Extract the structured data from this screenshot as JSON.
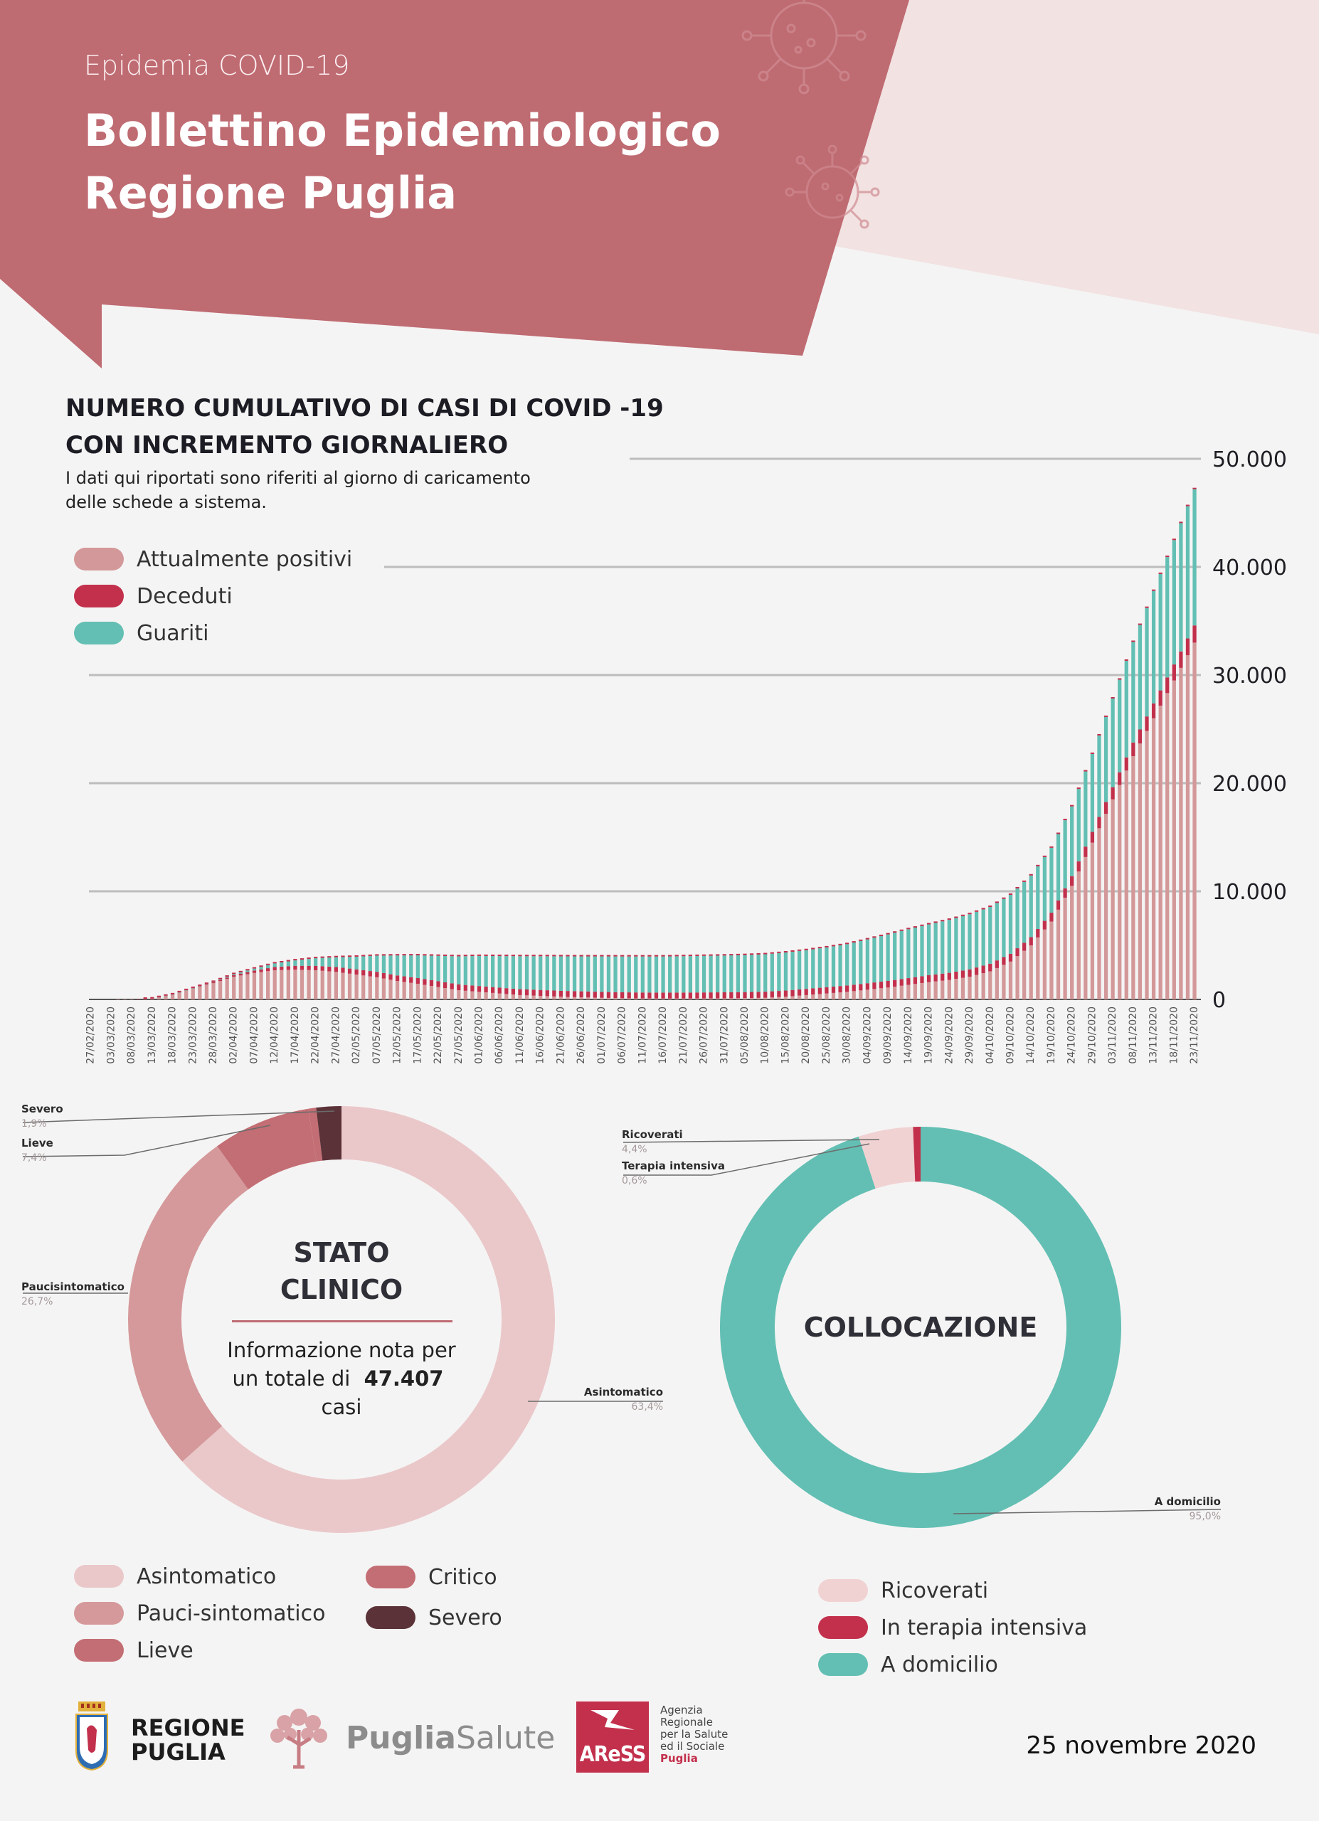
{
  "header": {
    "subtitle": "Epidemia COVID-19",
    "title_line1": "Bollettino Epidemiologico",
    "title_line2": "Regione Puglia"
  },
  "colors": {
    "header_red": "#bf6b72",
    "header_pink_light": "#f2e2e2",
    "attualmente_positivi": "#d39899",
    "deceduti": "#c2304c",
    "guariti": "#63bfb3",
    "asintomatico": "#eac8ca",
    "pauci": "#d5999b",
    "lieve": "#c36e74",
    "critico": "#c36e74",
    "severo": "#5a3238",
    "ricoverati": "#f1d2d3",
    "terapia_intensiva": "#c2304c",
    "domicilio": "#63bfb3"
  },
  "bar_chart_section": {
    "title_line1": "NUMERO CUMULATIVO DI CASI DI COVID -19",
    "title_line2": "CON INCREMENTO GIORNALIERO",
    "note_line1": "I dati qui riportati sono riferiti al giorno di caricamento",
    "note_line2": "delle schede a sistema.",
    "legend": [
      {
        "label": "Attualmente positivi",
        "color": "#d39899"
      },
      {
        "label": "Deceduti",
        "color": "#c2304c"
      },
      {
        "label": "Guariti",
        "color": "#63bfb3"
      }
    ]
  },
  "chart_data": [
    {
      "type": "bar",
      "stacked": true,
      "title": "NUMERO CUMULATIVO DI CASI DI COVID -19 CON INCREMENTO GIORNALIERO",
      "ylim": [
        0,
        50000
      ],
      "yticks": [
        "0",
        "10.000",
        "20.000",
        "30.000",
        "40.000",
        "50.000"
      ],
      "grid": true,
      "x_tick_labels": [
        "27/02/2020",
        "03/03/2020",
        "08/03/2020",
        "13/03/2020",
        "18/03/2020",
        "23/03/2020",
        "28/03/2020",
        "02/04/2020",
        "07/04/2020",
        "12/04/2020",
        "17/04/2020",
        "22/04/2020",
        "27/04/2020",
        "02/05/2020",
        "07/05/2020",
        "12/05/2020",
        "17/05/2020",
        "22/05/2020",
        "27/05/2020",
        "01/06/2020",
        "06/06/2020",
        "11/06/2020",
        "16/06/2020",
        "21/06/2020",
        "26/06/2020",
        "01/07/2020",
        "06/07/2020",
        "11/07/2020",
        "16/07/2020",
        "21/07/2020",
        "26/07/2020",
        "31/07/2020",
        "05/08/2020",
        "10/08/2020",
        "15/08/2020",
        "20/08/2020",
        "25/08/2020",
        "30/08/2020",
        "04/09/2020",
        "09/09/2020",
        "14/09/2020",
        "19/09/2020",
        "24/09/2020",
        "29/09/2020",
        "04/10/2020",
        "09/10/2020",
        "14/10/2020",
        "19/10/2020",
        "24/10/2020",
        "29/10/2020",
        "03/11/2020",
        "08/11/2020",
        "13/11/2020",
        "18/11/2020",
        "23/11/2020"
      ],
      "series_samples_note": "values per tick date (every 5 days)",
      "series": [
        {
          "name": "Attualmente positivi",
          "values": [
            0,
            0,
            10,
            80,
            450,
            1000,
            1500,
            2100,
            2450,
            2700,
            2750,
            2700,
            2550,
            2300,
            2050,
            1700,
            1450,
            1150,
            850,
            700,
            550,
            400,
            330,
            250,
            200,
            150,
            110,
            90,
            80,
            80,
            90,
            100,
            120,
            150,
            250,
            400,
            550,
            700,
            900,
            1100,
            1350,
            1600,
            1800,
            2100,
            2600,
            3500,
            5000,
            7200,
            10500,
            14500,
            18500,
            22500,
            26000,
            29500,
            33000
          ]
        },
        {
          "name": "Deceduti",
          "values": [
            0,
            0,
            0,
            5,
            15,
            40,
            80,
            150,
            220,
            300,
            360,
            410,
            450,
            480,
            500,
            515,
            525,
            530,
            535,
            540,
            540,
            545,
            545,
            545,
            548,
            548,
            550,
            550,
            552,
            555,
            556,
            558,
            560,
            565,
            570,
            575,
            580,
            590,
            600,
            610,
            620,
            640,
            660,
            680,
            700,
            720,
            760,
            820,
            900,
            1000,
            1130,
            1260,
            1380,
            1480,
            1590
          ]
        },
        {
          "name": "Guariti",
          "values": [
            0,
            0,
            0,
            0,
            5,
            15,
            40,
            90,
            180,
            330,
            500,
            700,
            900,
            1170,
            1500,
            1850,
            2100,
            2350,
            2600,
            2780,
            2920,
            3050,
            3120,
            3190,
            3230,
            3280,
            3310,
            3330,
            3340,
            3360,
            3380,
            3400,
            3420,
            3460,
            3520,
            3580,
            3680,
            3820,
            4050,
            4300,
            4520,
            4700,
            4900,
            5100,
            5250,
            5450,
            5700,
            6000,
            6450,
            7200,
            8200,
            9300,
            10400,
            11500,
            12600
          ]
        }
      ]
    },
    {
      "type": "pie",
      "donut": true,
      "title": "STATO CLINICO",
      "labels": [
        "Asintomatico",
        "Paucisintomatico",
        "Lieve",
        "Critico",
        "Severo"
      ],
      "values": [
        63.4,
        26.7,
        7.4,
        0.6,
        1.9
      ]
    },
    {
      "type": "pie",
      "donut": true,
      "title": "COLLOCAZIONE",
      "labels": [
        "Ricoverati",
        "Terapia intensiva",
        "A domicilio"
      ],
      "values": [
        4.4,
        0.6,
        95.0
      ]
    }
  ],
  "stato_clinico": {
    "center_title_line1": "STATO",
    "center_title_line2": "CLINICO",
    "info_line1": "Informazione nota per",
    "info_prefix": "un totale di",
    "info_total": "47.407",
    "info_suffix": "casi",
    "callouts": [
      {
        "label": "Severo",
        "pct": "1,9%"
      },
      {
        "label": "Lieve",
        "pct": "7,4%"
      },
      {
        "label": "Paucisintomatico",
        "pct": "26,7%"
      },
      {
        "label": "Asintomatico",
        "pct": "63,4%"
      }
    ],
    "legend": [
      {
        "label": "Asintomatico",
        "color": "#eac8ca"
      },
      {
        "label": "Pauci-sintomatico",
        "color": "#d5999b"
      },
      {
        "label": "Lieve",
        "color": "#c36e74"
      },
      {
        "label": "Critico",
        "color": "#c36e74"
      },
      {
        "label": "Severo",
        "color": "#5a3238"
      }
    ]
  },
  "collocazione": {
    "center_title": "COLLOCAZIONE",
    "callouts": [
      {
        "label": "Ricoverati",
        "pct": "4,4%"
      },
      {
        "label": "Terapia intensiva",
        "pct": "0,6%"
      },
      {
        "label": "A domicilio",
        "pct": "95,0%"
      }
    ],
    "legend": [
      {
        "label": "Ricoverati",
        "color": "#f1d2d3"
      },
      {
        "label": "In terapia intensiva",
        "color": "#c2304c"
      },
      {
        "label": "A domicilio",
        "color": "#63bfb3"
      }
    ]
  },
  "footer": {
    "regione_line1": "REGIONE",
    "regione_line2": "PUGLIA",
    "puglia": "Puglia",
    "salute": "Salute",
    "aress": "AReSS",
    "agenzia_lines": [
      "Agenzia",
      "Regionale",
      "per la Salute",
      "ed il Sociale",
      "Puglia"
    ],
    "date": "25 novembre 2020"
  }
}
